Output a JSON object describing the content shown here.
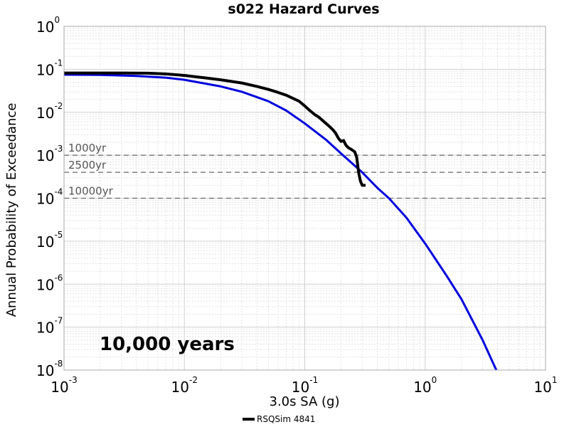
{
  "chart_data": {
    "type": "line",
    "title": "s022 Hazard Curves",
    "xlabel": "3.0s SA (g)",
    "ylabel": "Annual Probability of Exceedance",
    "x_scale": "log",
    "y_scale": "log",
    "xlim": [
      0.001,
      10
    ],
    "ylim": [
      1e-08,
      1
    ],
    "grid": true,
    "x_ticks": [
      {
        "base": "10",
        "exp": "-3"
      },
      {
        "base": "10",
        "exp": "-2"
      },
      {
        "base": "10",
        "exp": "-1"
      },
      {
        "base": "10",
        "exp": "0"
      },
      {
        "base": "10",
        "exp": "1"
      }
    ],
    "y_ticks": [
      {
        "base": "10",
        "exp": "0"
      },
      {
        "base": "10",
        "exp": "-1"
      },
      {
        "base": "10",
        "exp": "-2"
      },
      {
        "base": "10",
        "exp": "-3"
      },
      {
        "base": "10",
        "exp": "-4"
      },
      {
        "base": "10",
        "exp": "-5"
      },
      {
        "base": "10",
        "exp": "-6"
      },
      {
        "base": "10",
        "exp": "-7"
      },
      {
        "base": "10",
        "exp": "-8"
      }
    ],
    "return_periods": [
      {
        "label": "1000yr",
        "y": 0.001
      },
      {
        "label": "2500yr",
        "y": 0.0004
      },
      {
        "label": "10000yr",
        "y": 0.0001
      }
    ],
    "annotation": "10,000 years",
    "series": [
      {
        "name": "RSQSim 4841",
        "color": "#000000",
        "x": [
          0.001,
          0.002,
          0.003,
          0.005,
          0.007,
          0.01,
          0.015,
          0.02,
          0.03,
          0.04,
          0.05,
          0.06,
          0.07,
          0.08,
          0.09,
          0.1,
          0.11,
          0.12,
          0.13,
          0.14,
          0.15,
          0.16,
          0.17,
          0.18,
          0.19,
          0.2,
          0.21,
          0.22,
          0.23,
          0.24,
          0.25,
          0.26,
          0.27,
          0.275,
          0.28,
          0.29,
          0.3,
          0.32
        ],
        "y": [
          0.082,
          0.082,
          0.082,
          0.081,
          0.078,
          0.072,
          0.063,
          0.057,
          0.048,
          0.04,
          0.034,
          0.029,
          0.025,
          0.021,
          0.018,
          0.014,
          0.011,
          0.009,
          0.0078,
          0.0065,
          0.0055,
          0.0047,
          0.004,
          0.0033,
          0.0025,
          0.0021,
          0.0022,
          0.0017,
          0.0015,
          0.0014,
          0.0013,
          0.0012,
          0.0009,
          0.0006,
          0.0004,
          0.00025,
          0.0002,
          0.0002
        ]
      },
      {
        "name": "",
        "color": "#0000dd",
        "x": [
          0.001,
          0.002,
          0.004,
          0.007,
          0.01,
          0.02,
          0.03,
          0.05,
          0.07,
          0.1,
          0.15,
          0.2,
          0.3,
          0.4,
          0.5,
          0.7,
          1.0,
          1.5,
          2.0,
          3.0,
          3.9
        ],
        "y": [
          0.075,
          0.074,
          0.07,
          0.064,
          0.057,
          0.04,
          0.03,
          0.018,
          0.011,
          0.0055,
          0.0023,
          0.0011,
          0.0004,
          0.000175,
          0.0001,
          3.5e-05,
          8.8e-06,
          1.6e-06,
          4.5e-07,
          5e-08,
          1e-08
        ]
      }
    ]
  },
  "legend": {
    "entries": [
      {
        "label": "RSQSim 4841",
        "color": "#000000"
      }
    ]
  }
}
